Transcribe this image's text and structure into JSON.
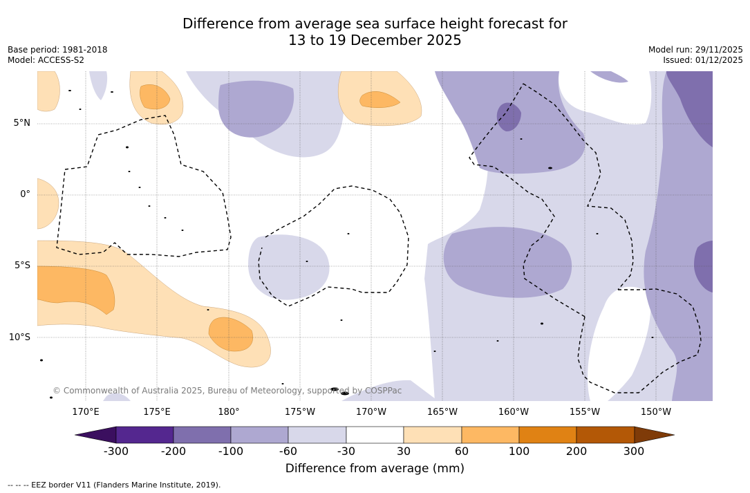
{
  "title_line1": "Difference from average sea surface height forecast for",
  "title_line2": "13 to 19 December 2025",
  "base_period": "Base period: 1981-2018",
  "model": "Model: ACCESS-S2",
  "model_run": "Model run: 29/11/2025",
  "issued": "Issued: 01/12/2025",
  "latitude_labels": [
    "5°N",
    "0°",
    "5°S",
    "10°S"
  ],
  "longitude_labels": [
    "170°E",
    "175°E",
    "180°",
    "175°W",
    "170°W",
    "165°W",
    "160°W",
    "155°W",
    "150°W"
  ],
  "copyright": "© Commonwealth of Australia 2025, Bureau of Meteorology, supported by COSPPac",
  "colorbar": {
    "ticks": [
      "-300",
      "-200",
      "-100",
      "-60",
      "-30",
      "30",
      "60",
      "100",
      "200",
      "300"
    ],
    "colors": [
      "#3b0f5f",
      "#54278f",
      "#7f6fad",
      "#aea8d1",
      "#d8d8ea",
      "#ffffff",
      "#fee0b6",
      "#fdb863",
      "#e08214",
      "#b35806",
      "#7f3b08"
    ],
    "label": "Difference from average (mm)"
  },
  "footnote": "--  --  -- EEZ border V11 (Flanders Marine Institute, 2019)."
}
